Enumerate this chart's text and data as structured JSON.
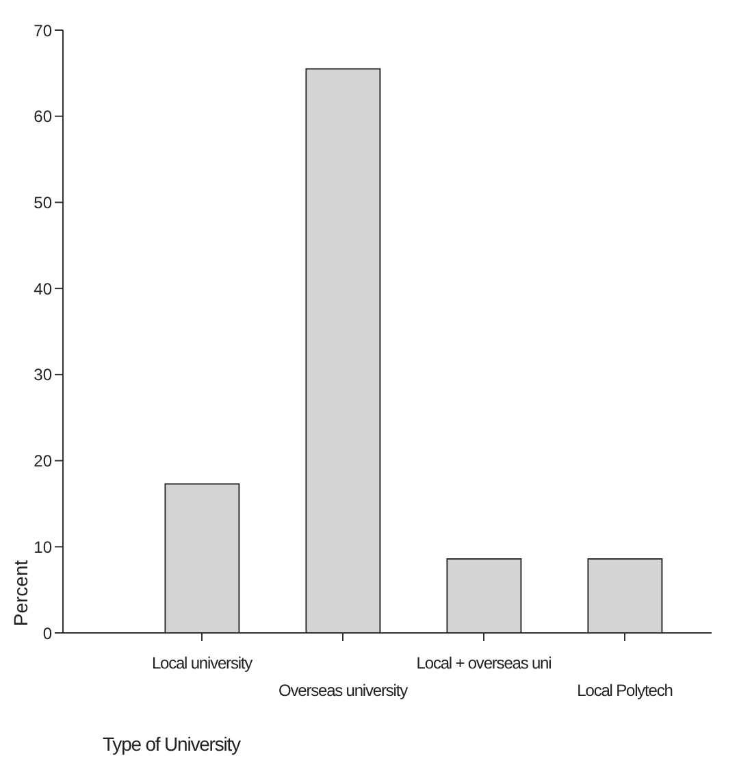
{
  "chart_data": {
    "type": "bar",
    "xlabel": "Type of University",
    "ylabel": "Percent",
    "categories": [
      "Local university",
      "Overseas university",
      "Local + overseas uni",
      "Local Polytech"
    ],
    "values": [
      17.3,
      65.5,
      8.6,
      8.6
    ],
    "color": "#d4d4d4",
    "ylim": [
      0,
      70
    ],
    "yticks": [
      0,
      10,
      20,
      30,
      40,
      50,
      60,
      70
    ],
    "grid": false,
    "legend": false
  }
}
